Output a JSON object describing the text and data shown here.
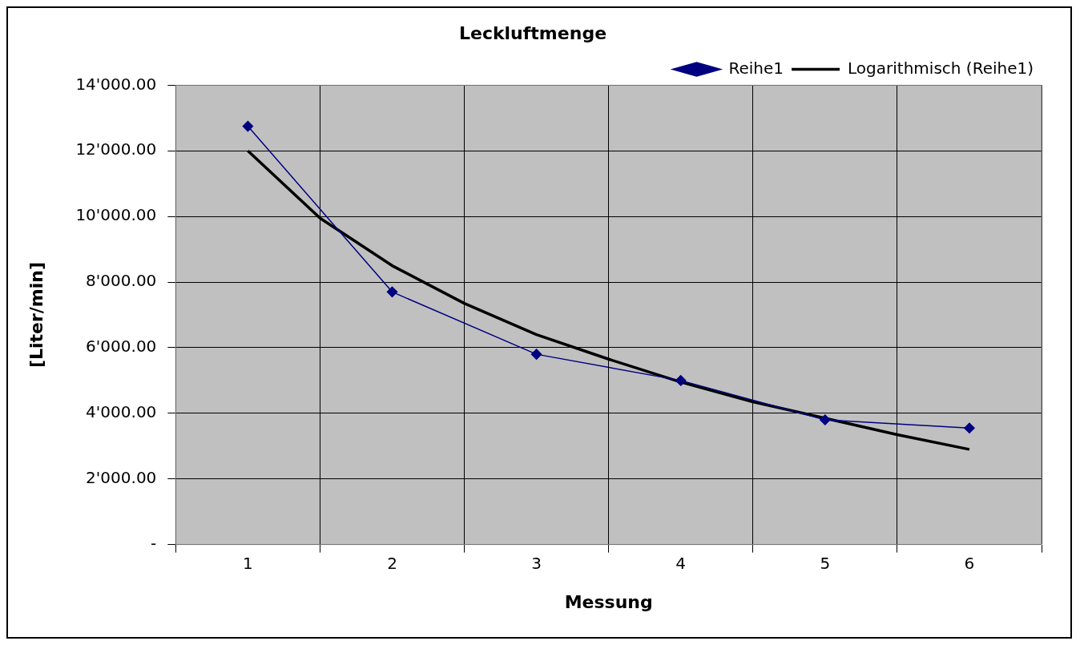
{
  "chart_data": {
    "type": "line",
    "title": "Leckluftmenge",
    "xlabel": "Messung",
    "ylabel": "[Liter/min]",
    "xlim": [
      0.5,
      6.5
    ],
    "xticks": [
      {
        "value": 0.5,
        "label": null
      },
      {
        "value": 1,
        "label": "1"
      },
      {
        "value": 1.5,
        "label": null
      },
      {
        "value": 2,
        "label": "2"
      },
      {
        "value": 2.5,
        "label": null
      },
      {
        "value": 3,
        "label": "3"
      },
      {
        "value": 3.5,
        "label": null
      },
      {
        "value": 4,
        "label": "4"
      },
      {
        "value": 4.5,
        "label": null
      },
      {
        "value": 5,
        "label": "5"
      },
      {
        "value": 5.5,
        "label": null
      },
      {
        "value": 6,
        "label": "6"
      },
      {
        "value": 6.5,
        "label": null
      }
    ],
    "ylim": [
      0,
      14000
    ],
    "yticks": [
      {
        "value": 0,
        "label": "-"
      },
      {
        "value": 2000,
        "label": "2'000.00"
      },
      {
        "value": 4000,
        "label": "4'000.00"
      },
      {
        "value": 6000,
        "label": "6'000.00"
      },
      {
        "value": 8000,
        "label": "8'000.00"
      },
      {
        "value": 10000,
        "label": "10'000.00"
      },
      {
        "value": 12000,
        "label": "12'000.00"
      },
      {
        "value": 14000,
        "label": "14'000.00"
      }
    ],
    "grid": true,
    "legend": "top right",
    "series": [
      {
        "name": "Reihe1",
        "color": "#000080",
        "marker": "diamond",
        "x": [
          1,
          2,
          3,
          4,
          5,
          6
        ],
        "values": [
          12750,
          7700,
          5800,
          5000,
          3800,
          3550
        ]
      },
      {
        "name": "Logarithmisch (Reihe1)",
        "color": "#000000",
        "marker": "none",
        "x": [
          1,
          1.5,
          2,
          2.5,
          3,
          3.5,
          4,
          4.5,
          5,
          5.5,
          6
        ],
        "values": [
          12000,
          9950,
          8500,
          7350,
          6400,
          5650,
          4950,
          4350,
          3850,
          3350,
          2900
        ]
      }
    ]
  }
}
